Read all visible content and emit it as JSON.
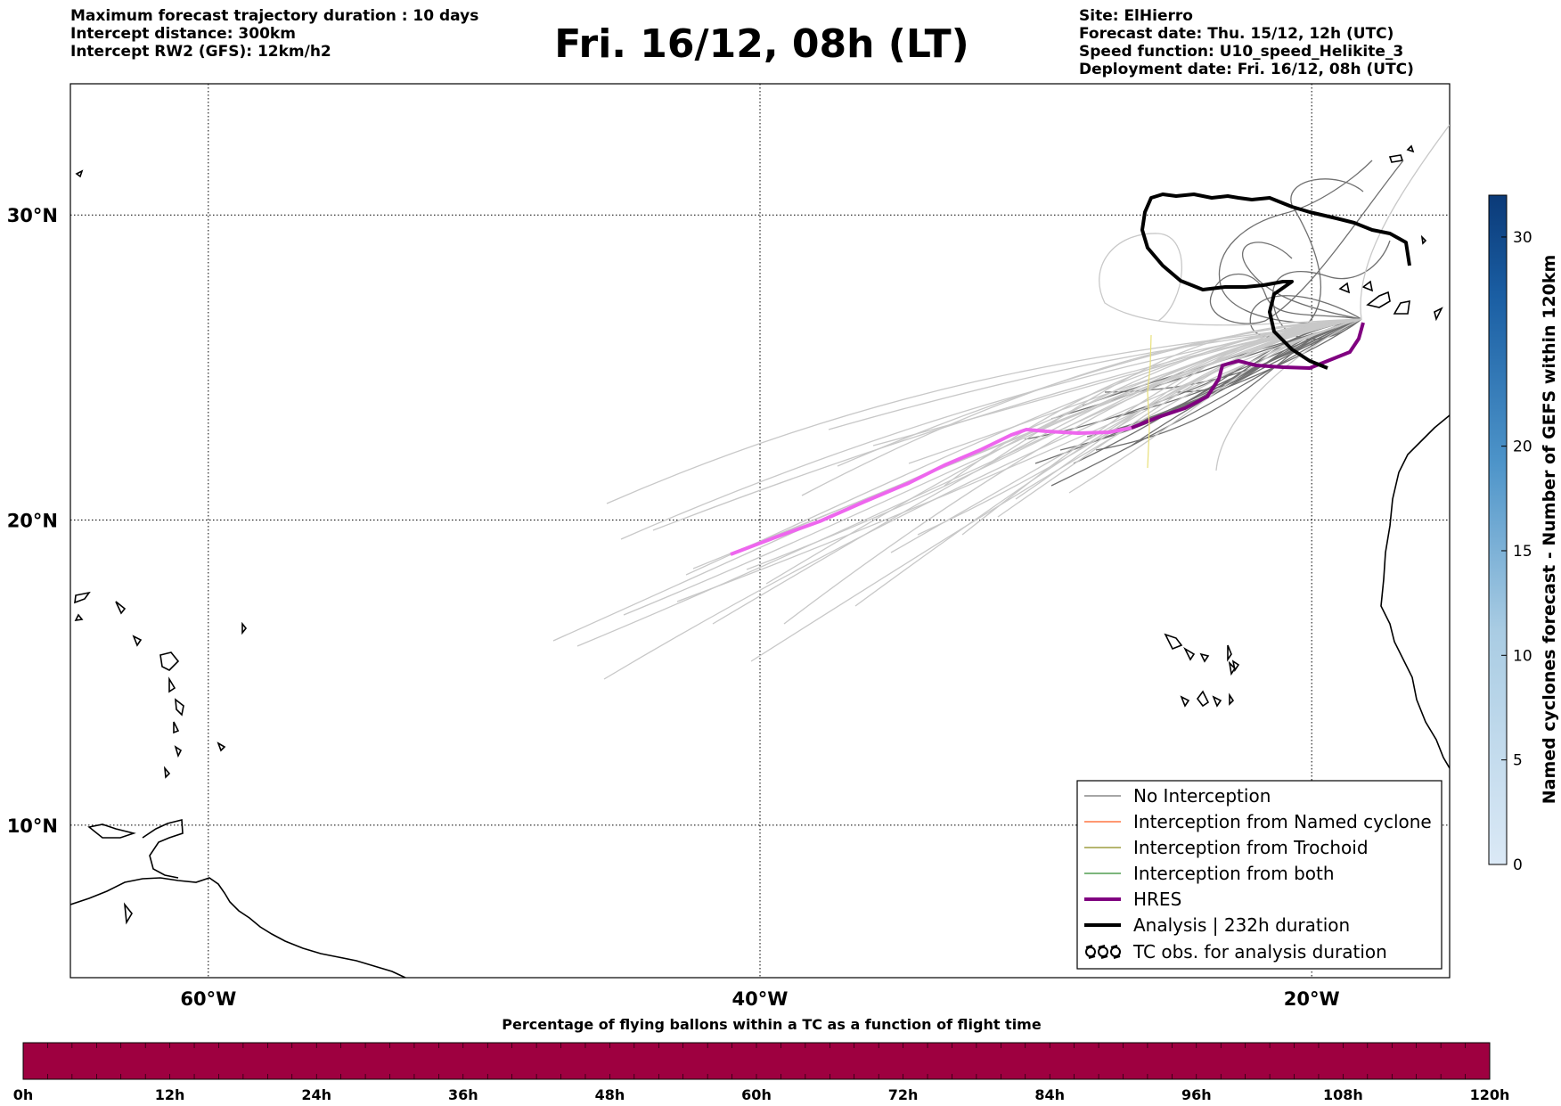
{
  "header": {
    "left_lines": [
      "Maximum forecast trajectory duration : 10 days",
      "Intercept distance: 300km",
      "Intercept RW2 (GFS):  12km/h2"
    ],
    "title": "Fri. 16/12, 08h (LT)",
    "right_lines": [
      "Site: ElHierro",
      "Forecast date: Thu. 15/12, 12h (UTC)",
      "Speed function: U10_speed_Helikite_3",
      "Deployment date: Fri. 16/12, 08h (UTC)"
    ]
  },
  "map": {
    "lon_range": [
      -65,
      -15
    ],
    "lat_range": [
      5,
      34.3
    ],
    "lon_ticks": [
      {
        "value": -60,
        "label": "60°W"
      },
      {
        "value": -40,
        "label": "40°W"
      },
      {
        "value": -20,
        "label": "20°W"
      }
    ],
    "lat_ticks": [
      {
        "value": 30,
        "label": "30°N"
      },
      {
        "value": 20,
        "label": "20°N"
      },
      {
        "value": 10,
        "label": "10°N"
      }
    ],
    "grid": "dotted",
    "colors": {
      "ensemble_no_interception": "#707070",
      "ensemble_faded": "#c8c8c8",
      "interception_named_cyclone": "#ff5a1f",
      "interception_trochoid": "#8a8a1a",
      "interception_both": "#2e8b2e",
      "hres": "#800080",
      "hres_faded": "#ee66ee",
      "analysis": "#000000"
    }
  },
  "legend": {
    "items": [
      {
        "label": "No Interception",
        "style": "thin-gray"
      },
      {
        "label": "Interception from Named cyclone",
        "style": "thin-orange"
      },
      {
        "label": "Interception from Trochoid",
        "style": "thin-olive"
      },
      {
        "label": "Interception from both",
        "style": "thin-green"
      },
      {
        "label": "HRES",
        "style": "thick-purple"
      },
      {
        "label": "Analysis | 232h duration",
        "style": "thick-black"
      },
      {
        "label": "TC obs. for analysis duration",
        "style": "tc-symbols"
      }
    ]
  },
  "colorbar_right": {
    "label": "Named cyclones forecast - Number of GEFS within 120km",
    "range": [
      0,
      32
    ],
    "ticks": [
      0,
      5,
      10,
      15,
      20,
      30
    ],
    "color_low": "#dbe9f6",
    "color_high": "#0b3a78"
  },
  "colorbar_bottom": {
    "title": "Percentage of flying ballons within a TC as a function of flight time",
    "ticks": [
      "0h",
      "12h",
      "24h",
      "36h",
      "48h",
      "60h",
      "72h",
      "84h",
      "96h",
      "108h",
      "120h"
    ],
    "segments": 60,
    "fill_color": "#9e0040"
  }
}
